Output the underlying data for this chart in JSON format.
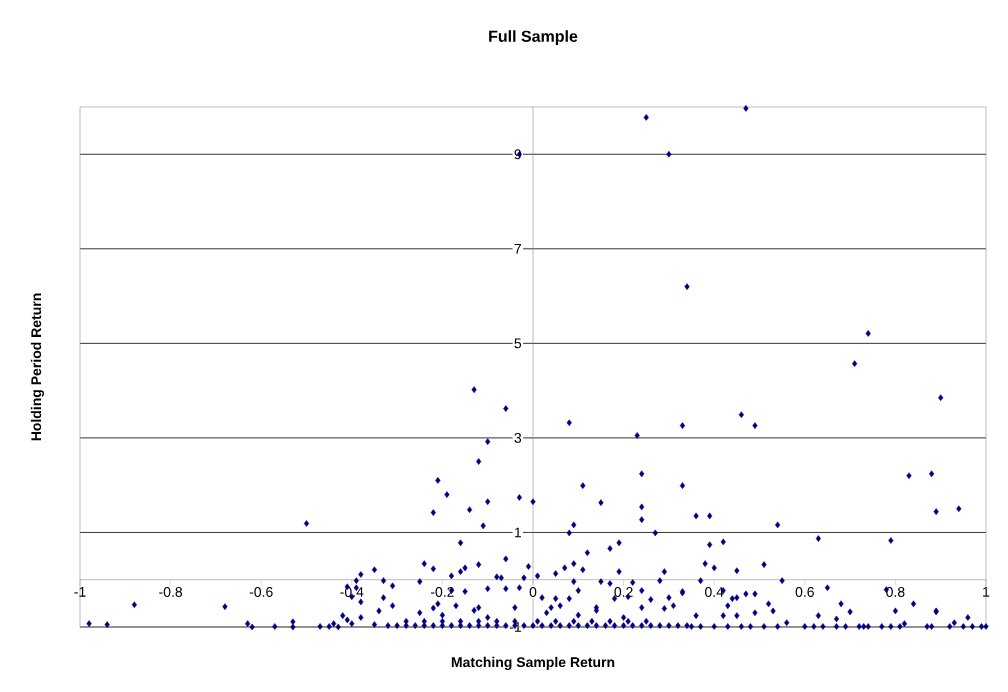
{
  "chart_data": {
    "type": "scatter",
    "title": "Full Sample",
    "xlabel": "Matching Sample Return",
    "ylabel": "Holding Period Return",
    "color": "#000080",
    "marker": "diamond",
    "grid": "y",
    "xlim": [
      -1,
      1
    ],
    "ylim": [
      -1,
      10
    ],
    "xticks": [
      -1,
      -0.8,
      -0.6,
      -0.4,
      -0.2,
      0,
      0.2,
      0.4,
      0.6,
      0.8,
      1
    ],
    "yticks": [
      -1,
      1,
      3,
      5,
      7,
      9
    ],
    "x": [
      -0.03,
      0.25,
      0.3,
      0.47,
      0.34,
      0.74,
      0.71,
      0.33,
      0.46,
      0.49,
      0.9,
      0.89,
      0.94,
      0.83,
      0.88,
      0.33,
      -0.13,
      -0.06,
      0.08,
      -0.1,
      0.23,
      -0.12,
      0.24,
      -0.21,
      0.11,
      -0.5,
      -0.19,
      -0.22,
      -0.14,
      -0.1,
      -0.11,
      -0.03,
      0.0,
      0.09,
      0.08,
      0.15,
      0.24,
      0.24,
      0.27,
      0.36,
      0.39,
      0.39,
      0.42,
      0.54,
      0.63,
      0.79,
      -0.16,
      -0.06,
      0.12,
      0.17,
      0.19,
      0.38,
      0.4,
      0.45,
      0.51,
      0.37,
      0.55,
      0.33,
      0.42,
      0.65,
      0.78,
      0.44,
      0.45,
      0.47,
      0.49,
      0.43,
      0.52,
      0.53,
      0.68,
      0.7,
      0.8,
      0.84,
      0.89,
      0.89,
      0.96,
      0.36,
      0.42,
      0.45,
      0.49,
      0.56,
      0.63,
      0.67,
      0.82,
      0.93,
      0.35,
      0.37,
      0.4,
      0.43,
      0.46,
      0.48,
      0.51,
      0.54,
      0.6,
      0.62,
      0.64,
      0.67,
      0.69,
      0.72,
      0.73,
      0.74,
      0.77,
      0.79,
      0.81,
      0.87,
      0.88,
      0.92,
      0.95,
      0.97,
      0.99,
      1.0,
      -0.35,
      -0.24,
      -0.22,
      -0.15,
      -0.16,
      -0.12,
      -0.01,
      0.05,
      0.07,
      0.09,
      0.11,
      0.19,
      0.29,
      -0.08,
      -0.07,
      -0.18,
      -0.33,
      -0.25,
      -0.02,
      0.01,
      0.09,
      0.15,
      0.17,
      0.22,
      0.28,
      -0.31,
      -0.33,
      -0.18,
      -0.15,
      -0.1,
      -0.06,
      -0.03,
      0.02,
      0.05,
      0.08,
      0.1,
      0.18,
      0.21,
      0.24,
      0.26,
      0.3,
      0.33,
      -0.34,
      -0.31,
      -0.21,
      -0.12,
      -0.04,
      0.04,
      0.14,
      0.24,
      0.29,
      0.31,
      -0.88,
      -0.98,
      -0.94,
      -0.68,
      -0.63,
      -0.62,
      -0.57,
      -0.53,
      -0.53,
      -0.47,
      -0.45,
      -0.44,
      -0.43,
      -0.41,
      -0.4,
      -0.41,
      -0.39,
      -0.38,
      -0.39,
      -0.4,
      -0.38,
      -0.42,
      -0.38,
      -0.35,
      -0.32,
      -0.3,
      -0.28,
      -0.26,
      -0.24,
      -0.22,
      -0.2,
      -0.18,
      -0.16,
      -0.14,
      -0.12,
      -0.1,
      -0.08,
      -0.06,
      -0.04,
      -0.02,
      0.0,
      0.02,
      0.04,
      0.06,
      0.08,
      0.1,
      0.12,
      0.14,
      0.16,
      0.18,
      0.2,
      0.22,
      0.24,
      0.26,
      0.28,
      0.3,
      0.32,
      0.34,
      -0.28,
      -0.24,
      -0.2,
      -0.16,
      -0.12,
      -0.08,
      -0.04,
      0.01,
      0.05,
      0.09,
      0.13,
      0.17,
      0.21,
      0.25,
      -0.25,
      -0.22,
      -0.2,
      -0.17,
      -0.13,
      -0.1,
      0.03,
      0.06,
      0.1,
      0.14,
      0.2
    ],
    "values": [
      9.0,
      9.78,
      9.0,
      9.97,
      6.2,
      5.21,
      4.57,
      3.26,
      3.49,
      3.26,
      3.85,
      1.44,
      1.5,
      2.2,
      2.24,
      1.99,
      4.02,
      3.62,
      3.32,
      2.92,
      3.05,
      2.5,
      2.24,
      2.1,
      1.99,
      1.19,
      1.8,
      1.42,
      1.48,
      1.65,
      1.14,
      1.74,
      1.65,
      1.16,
      0.99,
      1.63,
      1.54,
      1.27,
      0.99,
      1.35,
      1.35,
      0.74,
      0.8,
      1.16,
      0.87,
      0.83,
      0.78,
      0.44,
      0.57,
      0.66,
      0.78,
      0.34,
      0.25,
      0.19,
      0.32,
      -0.02,
      -0.02,
      -0.28,
      -0.23,
      -0.17,
      -0.21,
      -0.4,
      -0.38,
      -0.3,
      -0.3,
      -0.55,
      -0.51,
      -0.66,
      -0.51,
      -0.68,
      -0.66,
      -0.51,
      -0.68,
      -0.66,
      -0.8,
      -0.76,
      -0.76,
      -0.76,
      -0.7,
      -0.91,
      -0.76,
      -0.83,
      -0.93,
      -0.91,
      -0.99,
      -0.99,
      -0.99,
      -0.99,
      -0.99,
      -0.99,
      -0.99,
      -0.99,
      -0.99,
      -0.99,
      -0.99,
      -0.99,
      -0.99,
      -0.99,
      -0.99,
      -0.99,
      -0.99,
      -0.99,
      -0.99,
      -0.99,
      -0.99,
      -0.99,
      -0.99,
      -0.99,
      -0.99,
      -0.99,
      0.21,
      0.34,
      0.23,
      0.25,
      0.17,
      0.32,
      0.28,
      0.13,
      0.25,
      0.34,
      0.21,
      0.17,
      0.17,
      0.06,
      0.04,
      0.08,
      -0.02,
      -0.04,
      0.04,
      0.08,
      -0.04,
      -0.04,
      -0.08,
      -0.06,
      -0.02,
      -0.13,
      -0.38,
      -0.23,
      -0.25,
      -0.19,
      -0.19,
      -0.17,
      -0.38,
      -0.4,
      -0.4,
      -0.23,
      -0.4,
      -0.36,
      -0.23,
      -0.42,
      -0.38,
      -0.25,
      -0.66,
      -0.55,
      -0.51,
      -0.59,
      -0.59,
      -0.59,
      -0.59,
      -0.59,
      -0.61,
      -0.55,
      -0.53,
      -0.93,
      -0.95,
      -0.57,
      -0.93,
      -1.0,
      -0.99,
      -1.0,
      -0.89,
      -0.99,
      -0.99,
      -0.93,
      -1.0,
      -0.85,
      -0.93,
      -0.15,
      -0.02,
      0.11,
      -0.17,
      -0.36,
      -0.47,
      -0.76,
      -0.8,
      -0.95,
      -0.97,
      -0.97,
      -0.97,
      -0.97,
      -0.97,
      -0.97,
      -0.97,
      -0.97,
      -0.97,
      -0.97,
      -0.97,
      -0.97,
      -0.97,
      -0.97,
      -0.97,
      -0.97,
      -0.97,
      -0.97,
      -0.97,
      -0.97,
      -0.97,
      -0.97,
      -0.97,
      -0.97,
      -0.97,
      -0.97,
      -0.97,
      -0.97,
      -0.97,
      -0.97,
      -0.97,
      -0.97,
      -0.97,
      -0.97,
      -0.88,
      -0.88,
      -0.88,
      -0.88,
      -0.88,
      -0.88,
      -0.88,
      -0.88,
      -0.88,
      -0.88,
      -0.88,
      -0.88,
      -0.88,
      -0.88,
      -0.7,
      -0.6,
      -0.75,
      -0.55,
      -0.65,
      -0.8,
      -0.7,
      -0.55,
      -0.75,
      -0.65,
      -0.8
    ]
  }
}
